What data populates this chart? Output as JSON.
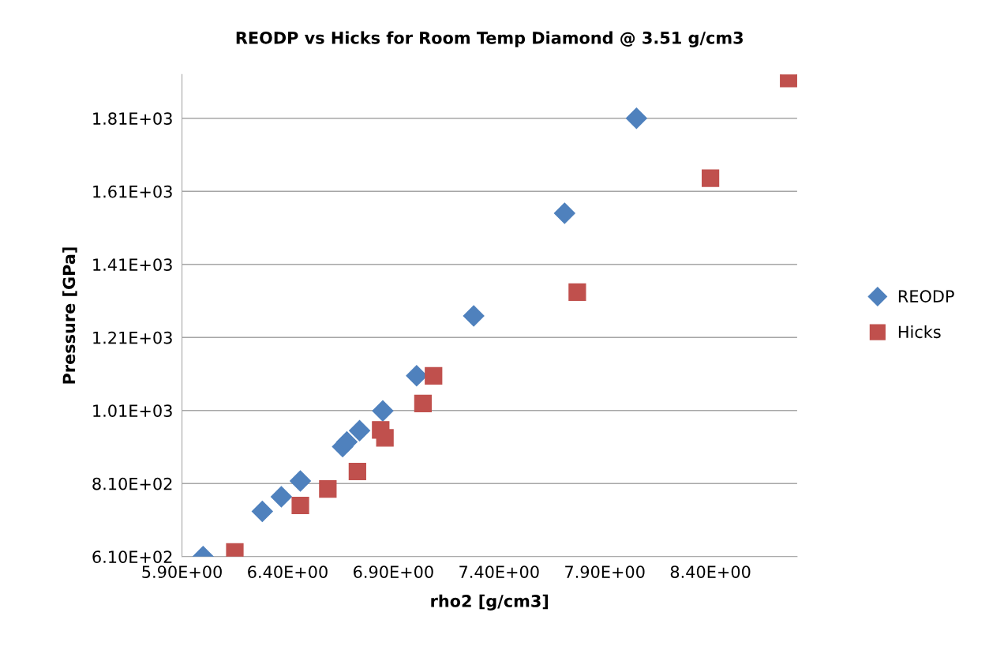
{
  "chart_data": {
    "type": "scatter",
    "title": "REODP vs Hicks for Room Temp Diamond @ 3.51 g/cm3",
    "xlabel": "rho2 [g/cm3]",
    "ylabel": "Pressure [GPa]",
    "xlim": [
      5.9,
      8.81
    ],
    "ylim": [
      610,
      1930
    ],
    "xticks": [
      {
        "value": 5.9,
        "label": "5.90E+00"
      },
      {
        "value": 6.4,
        "label": "6.40E+00"
      },
      {
        "value": 6.9,
        "label": "6.90E+00"
      },
      {
        "value": 7.4,
        "label": "7.40E+00"
      },
      {
        "value": 7.9,
        "label": "7.90E+00"
      },
      {
        "value": 8.4,
        "label": "8.40E+00"
      }
    ],
    "yticks": [
      {
        "value": 610,
        "label": "6.10E+02"
      },
      {
        "value": 810,
        "label": "8.10E+02"
      },
      {
        "value": 1010,
        "label": "1.01E+03"
      },
      {
        "value": 1210,
        "label": "1.21E+03"
      },
      {
        "value": 1410,
        "label": "1.41E+03"
      },
      {
        "value": 1610,
        "label": "1.61E+03"
      },
      {
        "value": 1810,
        "label": "1.81E+03"
      }
    ],
    "grid": "y",
    "legend": "right",
    "series": [
      {
        "name": "REODP",
        "color": "#4f81bd",
        "marker": "diamond",
        "x": [
          6.0,
          6.28,
          6.37,
          6.46,
          6.66,
          6.68,
          6.74,
          6.85,
          7.01,
          7.28,
          7.71,
          8.05
        ],
        "values": [
          610,
          734,
          774,
          817,
          911,
          924,
          955,
          1009,
          1105,
          1269,
          1550,
          1810
        ]
      },
      {
        "name": "Hicks",
        "color": "#c0504d",
        "marker": "square",
        "x": [
          6.15,
          6.46,
          6.59,
          6.73,
          6.84,
          6.86,
          7.04,
          7.09,
          7.77,
          8.4,
          8.77
        ],
        "values": [
          623,
          750,
          795,
          843,
          957,
          935,
          1029,
          1105,
          1334,
          1646,
          1919
        ]
      }
    ]
  }
}
